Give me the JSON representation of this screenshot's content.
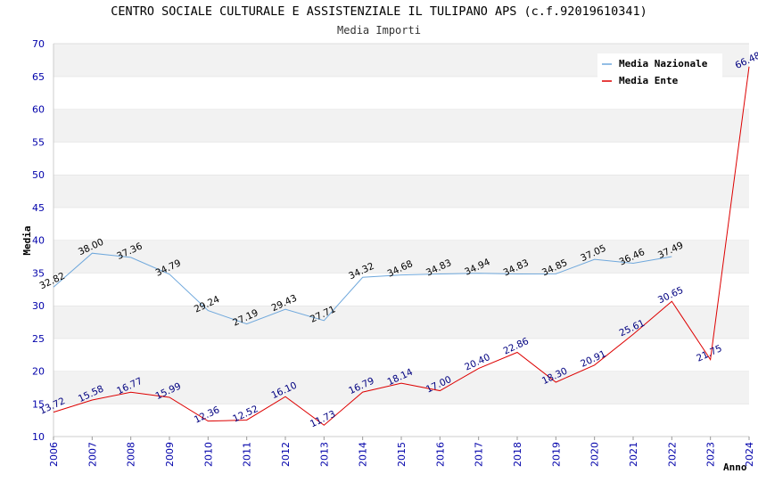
{
  "chart_data": {
    "type": "line",
    "title": "CENTRO SOCIALE CULTURALE E ASSISTENZIALE IL TULIPANO APS (c.f.92019610341)",
    "subtitle": "Media Importi",
    "xlabel": "Anno",
    "ylabel": "Media",
    "ylim": [
      10,
      70
    ],
    "yticks": [
      10,
      15,
      20,
      25,
      30,
      35,
      40,
      45,
      50,
      55,
      60,
      65,
      70
    ],
    "grid": "horizontal bands",
    "legend_position": "top-right",
    "x": [
      "2006",
      "2007",
      "2008",
      "2009",
      "2010",
      "2011",
      "2012",
      "2013",
      "2014",
      "2015",
      "2016",
      "2017",
      "2018",
      "2019",
      "2020",
      "2021",
      "2022",
      "2023",
      "2024"
    ],
    "series": [
      {
        "name": "Media Nazionale",
        "color": "#6fa8dc",
        "values": [
          32.82,
          38.0,
          37.36,
          34.79,
          29.24,
          27.19,
          29.43,
          27.71,
          34.32,
          34.68,
          34.83,
          34.94,
          34.83,
          34.85,
          37.05,
          36.46,
          37.49,
          null,
          null
        ],
        "labels": [
          "32.82",
          "38.00",
          "37.36",
          "34.79",
          "29.24",
          "27.19",
          "29.43",
          "27.71",
          "34.32",
          "34.68",
          "34.83",
          "34.94",
          "34.83",
          "34.85",
          "37.05",
          "36.46",
          "37.49",
          "",
          ""
        ]
      },
      {
        "name": "Media Ente",
        "color": "#dd0000",
        "values": [
          13.72,
          15.58,
          16.77,
          15.99,
          12.36,
          12.52,
          16.1,
          11.73,
          16.79,
          18.14,
          17.0,
          20.4,
          22.86,
          18.3,
          20.91,
          25.61,
          30.65,
          21.75,
          66.48
        ],
        "labels": [
          "13.72",
          "15.58",
          "16.77",
          "15.99",
          "12.36",
          "12.52",
          "16.10",
          "11.73",
          "16.79",
          "18.14",
          "17.00",
          "20.40",
          "22.86",
          "18.30",
          "20.91",
          "25.61",
          "30.65",
          "21.75",
          "66.48"
        ]
      }
    ]
  }
}
